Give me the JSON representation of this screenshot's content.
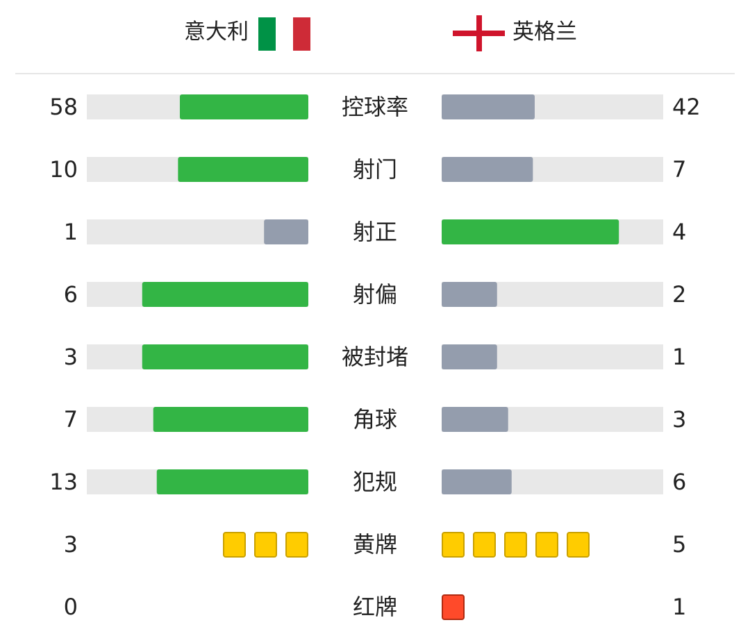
{
  "header": {
    "home": "意大利",
    "away": "英格兰"
  },
  "stats": [
    {
      "label": "控球率",
      "home": 58,
      "away": 42,
      "kind": "bar"
    },
    {
      "label": "射门",
      "home": 10,
      "away": 7,
      "kind": "bar"
    },
    {
      "label": "射正",
      "home": 1,
      "away": 4,
      "kind": "bar"
    },
    {
      "label": "射偏",
      "home": 6,
      "away": 2,
      "kind": "bar"
    },
    {
      "label": "被封堵",
      "home": 3,
      "away": 1,
      "kind": "bar"
    },
    {
      "label": "角球",
      "home": 7,
      "away": 3,
      "kind": "bar"
    },
    {
      "label": "犯规",
      "home": 13,
      "away": 6,
      "kind": "bar"
    },
    {
      "label": "黄牌",
      "home": 3,
      "away": 5,
      "kind": "cards",
      "color": "#ffcc00"
    },
    {
      "label": "红牌",
      "home": 0,
      "away": 1,
      "kind": "cards",
      "color": "#ff4a2a"
    }
  ],
  "colors": {
    "lead": "#33b545",
    "trail": "#949dad",
    "track": "#e8e8e8"
  }
}
